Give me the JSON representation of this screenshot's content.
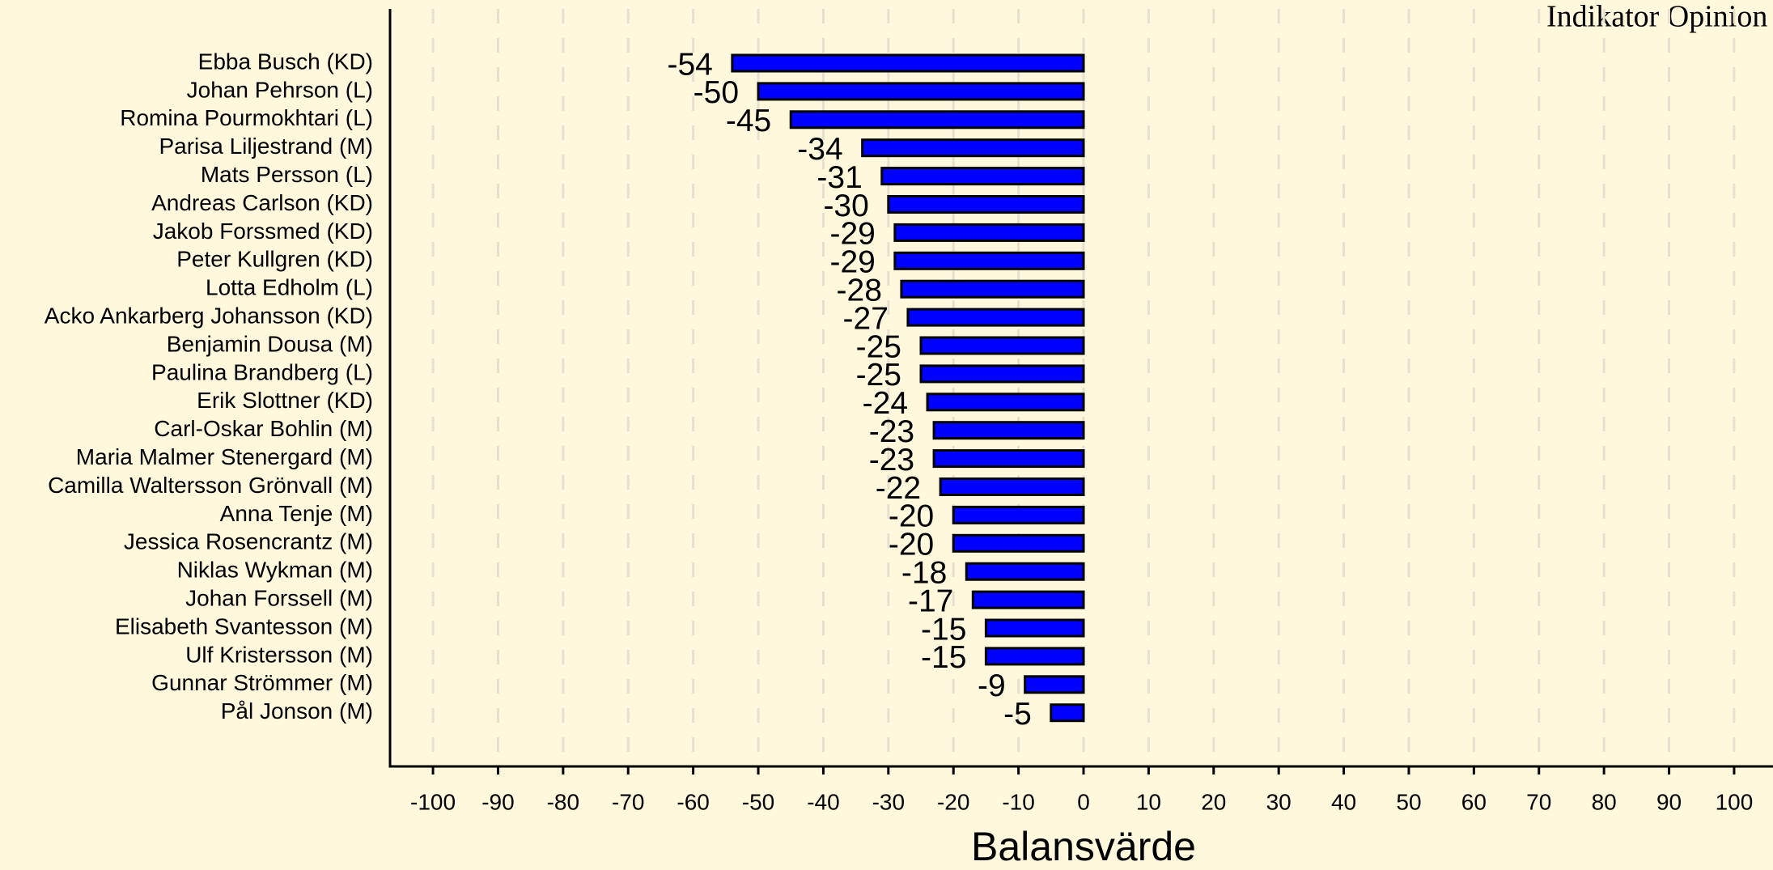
{
  "chart_data": {
    "type": "barh",
    "title": "Indikator Opinion",
    "xlabel": "Balansvärde",
    "categories": [
      "Ebba Busch (KD)",
      "Johan Pehrson (L)",
      "Romina Pourmokhtari (L)",
      "Parisa Liljestrand (M)",
      "Mats Persson (L)",
      "Andreas Carlson (KD)",
      "Jakob Forssmed (KD)",
      "Peter Kullgren (KD)",
      "Lotta Edholm (L)",
      "Acko Ankarberg Johansson (KD)",
      "Benjamin Dousa (M)",
      "Paulina Brandberg (L)",
      "Erik Slottner (KD)",
      "Carl-Oskar Bohlin (M)",
      "Maria Malmer Stenergard (M)",
      "Camilla Waltersson Grönvall (M)",
      "Anna Tenje (M)",
      "Jessica Rosencrantz (M)",
      "Niklas Wykman (M)",
      "Johan Forssell (M)",
      "Elisabeth Svantesson (M)",
      "Ulf Kristersson (M)",
      "Gunnar Strömmer (M)",
      "Pål Jonson (M)"
    ],
    "values": [
      -54,
      -50,
      -45,
      -34,
      -31,
      -30,
      -29,
      -29,
      -28,
      -27,
      -25,
      -25,
      -24,
      -23,
      -23,
      -22,
      -20,
      -20,
      -18,
      -17,
      -15,
      -15,
      -9,
      -5
    ],
    "color": "#0000ff",
    "xlim": [
      -106.6,
      106.6
    ],
    "xticks": [
      -100,
      -90,
      -80,
      -70,
      -60,
      -50,
      -40,
      -30,
      -20,
      -10,
      0,
      10,
      20,
      30,
      40,
      50,
      60,
      70,
      80,
      90,
      100
    ],
    "grid": true
  }
}
